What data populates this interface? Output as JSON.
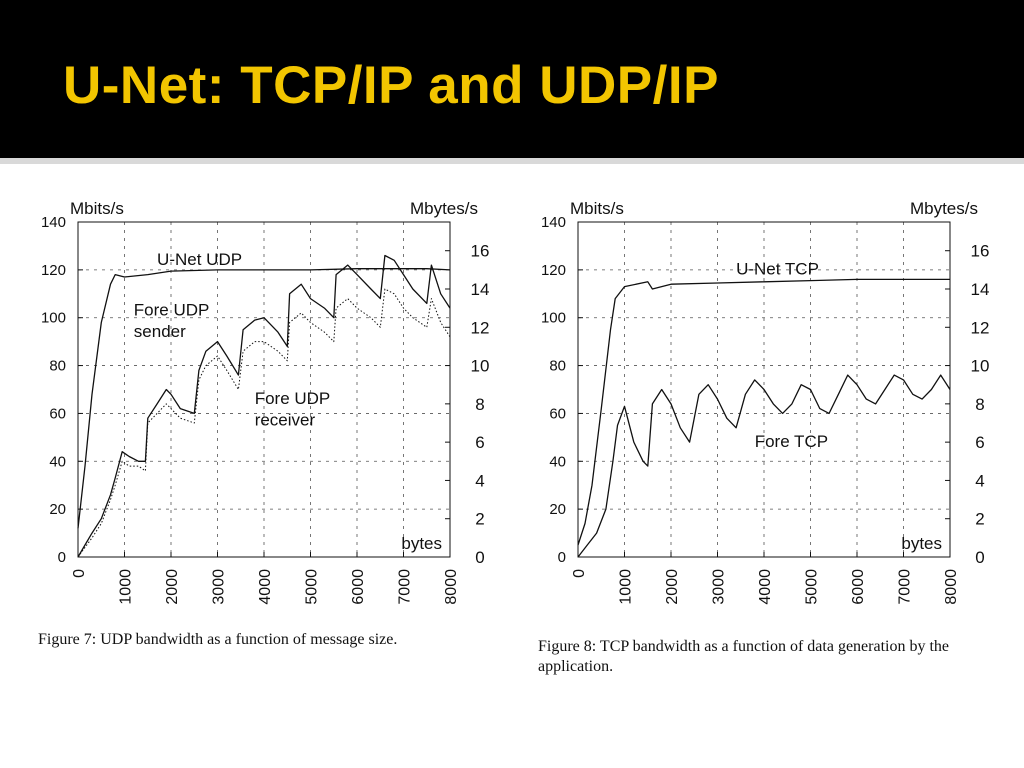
{
  "slide": {
    "title": "U-Net: TCP/IP and UDP/IP",
    "title_color": "#f2c500",
    "header_background": "#000000"
  },
  "chart_data": [
    {
      "type": "line",
      "title": "",
      "caption": "Figure 7: UDP bandwidth as a function of message size.",
      "xlabel": "bytes",
      "ylabel_left": "Mbits/s",
      "ylabel_right": "Mbytes/s",
      "xlim": [
        0,
        8000
      ],
      "ylim": [
        0,
        140
      ],
      "ylim_right": [
        0,
        17.5
      ],
      "grid": true,
      "x_ticks": [
        0,
        1000,
        2000,
        3000,
        4000,
        5000,
        6000,
        7000,
        8000
      ],
      "y_ticks_left": [
        0,
        20,
        40,
        60,
        80,
        100,
        120,
        140
      ],
      "y_ticks_right": [
        0,
        2,
        4,
        6,
        8,
        10,
        12,
        14,
        16
      ],
      "series": [
        {
          "name": "U-Net UDP",
          "style": "solid",
          "x": [
            0,
            150,
            300,
            500,
            700,
            800,
            1000,
            1500,
            2000,
            3000,
            4000,
            5000,
            6000,
            7000,
            7500,
            8000
          ],
          "y": [
            12,
            38,
            68,
            98,
            114,
            118,
            117,
            118,
            119.5,
            120,
            120,
            120,
            120.5,
            120.5,
            120.5,
            120
          ]
        },
        {
          "name": "Fore UDP sender",
          "style": "solid",
          "x": [
            0,
            150,
            300,
            500,
            700,
            800,
            950,
            1100,
            1300,
            1450,
            1500,
            1700,
            1900,
            2000,
            2200,
            2500,
            2600,
            2750,
            3000,
            3200,
            3450,
            3550,
            3800,
            4000,
            4300,
            4500,
            4550,
            4800,
            5000,
            5300,
            5500,
            5550,
            5800,
            6000,
            6300,
            6500,
            6600,
            6800,
            7000,
            7200,
            7500,
            7600,
            7800,
            8000
          ],
          "y": [
            0,
            5,
            10,
            16,
            26,
            33,
            44,
            42,
            40,
            40,
            58,
            64,
            70,
            68,
            62,
            60,
            78,
            86,
            90,
            84,
            76,
            95,
            99,
            100,
            94,
            88,
            110,
            114,
            108,
            104,
            100,
            118,
            122,
            118,
            112,
            108,
            126,
            124,
            118,
            112,
            106,
            122,
            110,
            104
          ]
        },
        {
          "name": "Fore UDP receiver",
          "style": "dotted",
          "x": [
            0,
            150,
            300,
            500,
            700,
            800,
            950,
            1100,
            1300,
            1450,
            1500,
            1700,
            1900,
            2000,
            2200,
            2500,
            2600,
            2750,
            3000,
            3200,
            3450,
            3550,
            3800,
            4000,
            4300,
            4500,
            4550,
            4800,
            5000,
            5300,
            5500,
            5550,
            5800,
            6000,
            6300,
            6500,
            6600,
            6800,
            7000,
            7200,
            7500,
            7600,
            7800,
            8000
          ],
          "y": [
            0,
            4,
            8,
            14,
            24,
            30,
            40,
            38,
            38,
            36,
            56,
            60,
            64,
            62,
            58,
            56,
            74,
            80,
            84,
            78,
            70,
            86,
            90,
            90,
            86,
            82,
            98,
            102,
            98,
            94,
            90,
            104,
            108,
            104,
            100,
            96,
            112,
            110,
            104,
            100,
            96,
            108,
            98,
            92
          ]
        }
      ],
      "annotations": [
        {
          "text": "U-Net UDP",
          "x": 1700,
          "y": 122
        },
        {
          "text": "Fore UDP",
          "x": 1200,
          "y": 101
        },
        {
          "text": "sender",
          "x": 1200,
          "y": 92
        },
        {
          "text": "Fore UDP",
          "x": 3800,
          "y": 64
        },
        {
          "text": "receiver",
          "x": 3800,
          "y": 55
        }
      ]
    },
    {
      "type": "line",
      "title": "",
      "caption": "Figure 8: TCP bandwidth as a function of data generation by the application.",
      "xlabel": "bytes",
      "ylabel_left": "Mbits/s",
      "ylabel_right": "Mbytes/s",
      "xlim": [
        0,
        8000
      ],
      "ylim": [
        0,
        140
      ],
      "ylim_right": [
        0,
        17.5
      ],
      "grid": true,
      "x_ticks": [
        0,
        1000,
        2000,
        3000,
        4000,
        5000,
        6000,
        7000,
        8000
      ],
      "y_ticks_left": [
        0,
        20,
        40,
        60,
        80,
        100,
        120,
        140
      ],
      "y_ticks_right": [
        0,
        2,
        4,
        6,
        8,
        10,
        12,
        14,
        16
      ],
      "series": [
        {
          "name": "U-Net TCP",
          "style": "solid",
          "x": [
            0,
            150,
            300,
            500,
            700,
            800,
            1000,
            1500,
            1600,
            2000,
            3000,
            4000,
            5000,
            6000,
            7000,
            8000
          ],
          "y": [
            5,
            14,
            30,
            62,
            95,
            108,
            113,
            115,
            112,
            114,
            114.5,
            115,
            115.5,
            116,
            116,
            116
          ]
        },
        {
          "name": "Fore TCP",
          "style": "solid",
          "x": [
            0,
            200,
            400,
            600,
            750,
            850,
            1000,
            1200,
            1400,
            1500,
            1600,
            1800,
            2000,
            2200,
            2400,
            2600,
            2800,
            3000,
            3200,
            3400,
            3600,
            3800,
            4000,
            4200,
            4400,
            4600,
            4800,
            5000,
            5200,
            5400,
            5600,
            5800,
            6000,
            6200,
            6400,
            6600,
            6800,
            7000,
            7200,
            7400,
            7600,
            7800,
            8000
          ],
          "y": [
            0,
            5,
            10,
            20,
            40,
            55,
            63,
            48,
            40,
            38,
            64,
            70,
            64,
            54,
            48,
            68,
            72,
            66,
            58,
            54,
            68,
            74,
            70,
            64,
            60,
            64,
            72,
            70,
            62,
            60,
            68,
            76,
            72,
            66,
            64,
            70,
            76,
            74,
            68,
            66,
            70,
            76,
            70
          ]
        }
      ],
      "annotations": [
        {
          "text": "U-Net TCP",
          "x": 3400,
          "y": 118
        },
        {
          "text": "Fore TCP",
          "x": 3800,
          "y": 46
        }
      ]
    }
  ]
}
